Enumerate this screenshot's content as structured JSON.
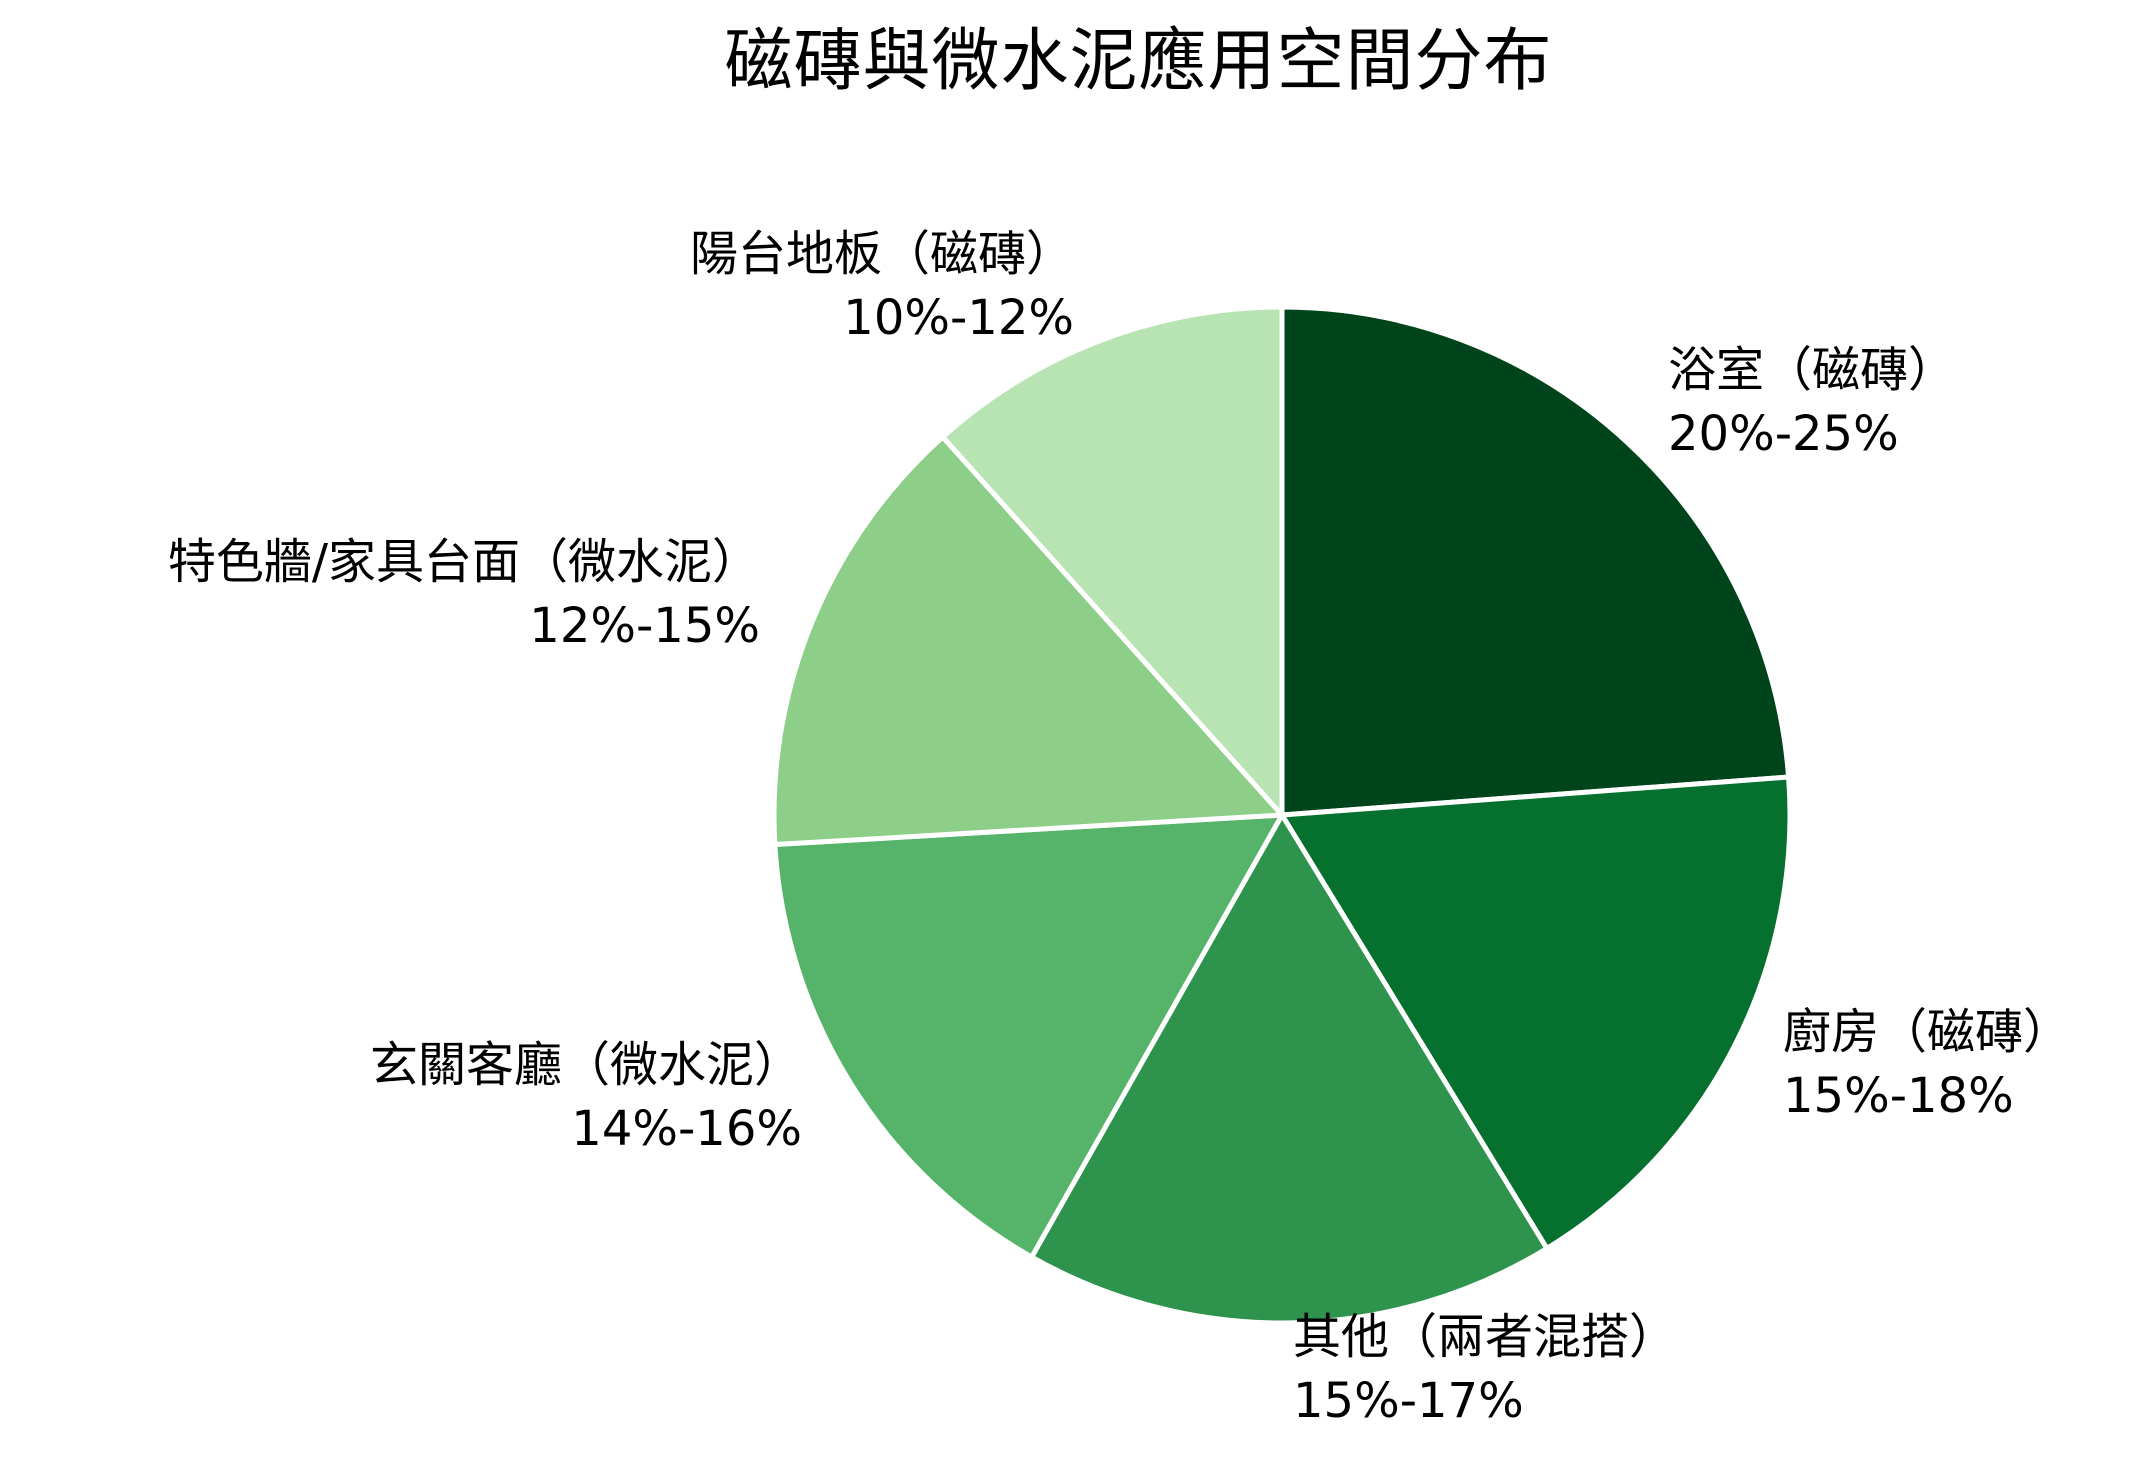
{
  "title": "磁磚與微水泥應用空間分布",
  "chart_data": {
    "type": "pie",
    "title": "磁磚與微水泥應用空間分布",
    "start_angle": "top (12 o'clock), clockwise",
    "slices": [
      {
        "label": "浴室（磁磚）",
        "range": "20%-25%",
        "min": 20,
        "max": 25,
        "mid": 22.5,
        "color": "#00441b"
      },
      {
        "label": "廚房（磁磚）",
        "range": "15%-18%",
        "min": 15,
        "max": 18,
        "mid": 16.5,
        "color": "#06702e"
      },
      {
        "label": "其他（兩者混搭）",
        "range": "15%-17%",
        "min": 15,
        "max": 17,
        "mid": 16,
        "color": "#2e934d"
      },
      {
        "label": "玄關客廳（微水泥）",
        "range": "14%-16%",
        "min": 14,
        "max": 16,
        "mid": 15,
        "color": "#55b469"
      },
      {
        "label": "特色牆/家具台面（微水泥）",
        "range": "12%-15%",
        "min": 12,
        "max": 15,
        "mid": 13.5,
        "color": "#8dce88"
      },
      {
        "label": "陽台地板（磁磚）",
        "range": "10%-12%",
        "min": 10,
        "max": 12,
        "mid": 11,
        "color": "#b8e3b3"
      }
    ],
    "legend": "none (labels placed outside slices)",
    "edge_color": "#ffffff"
  },
  "labels": [
    {
      "name": "浴室（磁磚）",
      "value": "20%-25%"
    },
    {
      "name": "廚房（磁磚）",
      "value": "15%-18%"
    },
    {
      "name": "其他（兩者混搭）",
      "value": "15%-17%"
    },
    {
      "name": "玄關客廳（微水泥）",
      "value": "14%-16%"
    },
    {
      "name": "特色牆/家具台面（微水泥）",
      "value": "12%-15%"
    },
    {
      "name": "陽台地板（磁磚）",
      "value": "10%-12%"
    }
  ]
}
